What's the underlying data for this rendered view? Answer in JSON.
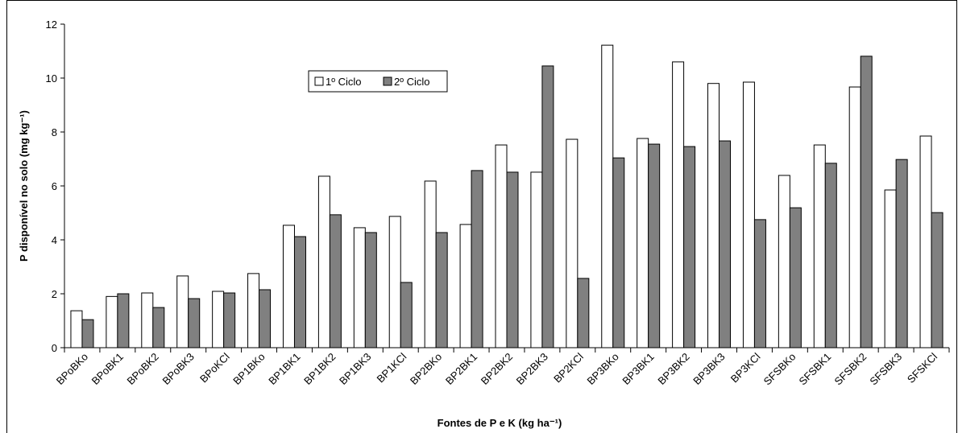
{
  "chart_data": {
    "type": "bar",
    "y_label": "P disponível no solo (mg kg⁻¹)",
    "x_label": "Fontes de P e K (kg ha⁻¹)",
    "categories": [
      "BPoBKo",
      "BPoBK1",
      "BPoBK2",
      "BPoBK3",
      "BPoKCl",
      "BP1BKo",
      "BP1BK1",
      "BP1BK2",
      "BP1BK3",
      "BP1KCl",
      "BP2BKo",
      "BP2BK1",
      "BP2BK2",
      "BP2BK3",
      "BP2KCl",
      "BP3BKo",
      "BP3BK1",
      "BP3BK2",
      "BP3BK3",
      "BP3KCl",
      "SFSBKo",
      "SFSBK1",
      "SFSBK2",
      "SFSBK3",
      "SFSKCl"
    ],
    "series": [
      {
        "name": "1º Ciclo",
        "color": "#ffffff",
        "values": [
          1.37,
          1.9,
          2.03,
          2.66,
          2.09,
          2.75,
          4.54,
          6.36,
          4.45,
          4.87,
          6.18,
          4.57,
          7.52,
          6.51,
          7.73,
          11.22,
          7.76,
          10.6,
          9.8,
          9.85,
          6.39,
          7.52,
          9.67,
          5.85,
          7.85
        ]
      },
      {
        "name": "2º Ciclo",
        "color": "#808080",
        "values": [
          1.04,
          2.0,
          1.49,
          1.82,
          2.03,
          2.15,
          4.12,
          4.93,
          4.27,
          2.42,
          4.27,
          6.57,
          6.51,
          10.45,
          2.57,
          7.04,
          7.55,
          7.46,
          7.67,
          4.75,
          5.19,
          6.84,
          10.81,
          6.98,
          5.01
        ]
      }
    ],
    "ylim": [
      0,
      12
    ],
    "yticks": [
      0,
      2,
      4,
      6,
      8,
      10,
      12
    ]
  }
}
